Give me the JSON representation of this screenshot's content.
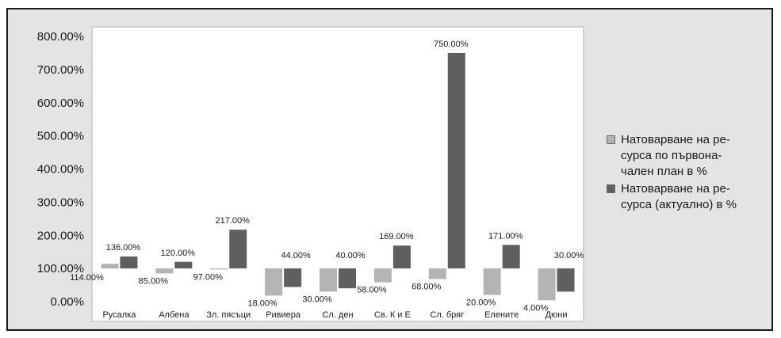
{
  "chart_data": {
    "type": "bar",
    "categories": [
      "Русалка",
      "Албена",
      "Зл. пясъци",
      "Ривиера",
      "Сл. ден",
      "Св. К и Е",
      "Сл. бряг",
      "Елените",
      "Дюни"
    ],
    "series": [
      {
        "name": "Натоварване на ре-сурса по първона-чален план в %",
        "name_lines": [
          "Натоварване на ре-",
          "сурса по първона-",
          "чален план в %"
        ],
        "values": [
          114,
          85,
          97,
          18,
          30,
          58,
          68,
          20,
          4
        ],
        "labels": [
          "114.00%",
          "85.00%",
          "97.00%",
          "18.00%",
          "30.00%",
          "58.00%",
          "68.00%",
          "20.00%",
          "4.00%"
        ],
        "color": "#b4b4b4"
      },
      {
        "name": "Натоварване на ре-сурса (актуално) в %",
        "name_lines": [
          "Натоварване на ре-",
          "сурса (актуално) в %"
        ],
        "values": [
          136,
          120,
          217,
          44,
          40,
          169,
          750,
          171,
          30
        ],
        "labels": [
          "136.00%",
          "120.00%",
          "217.00%",
          "44.00%",
          "40.00%",
          "169.00%",
          "750.00%",
          "171.00%",
          "30.00%"
        ],
        "color": "#5f5f5f"
      }
    ],
    "baseline": 100,
    "yticks": [
      0,
      100,
      200,
      300,
      400,
      500,
      600,
      700,
      800
    ],
    "ytick_labels": [
      "0.00%",
      "100.00%",
      "200.00%",
      "300.00%",
      "400.00%",
      "500.00%",
      "600.00%",
      "700.00%",
      "800.00%"
    ],
    "ylim": [
      0,
      800
    ],
    "grid": false,
    "legend": "right"
  }
}
